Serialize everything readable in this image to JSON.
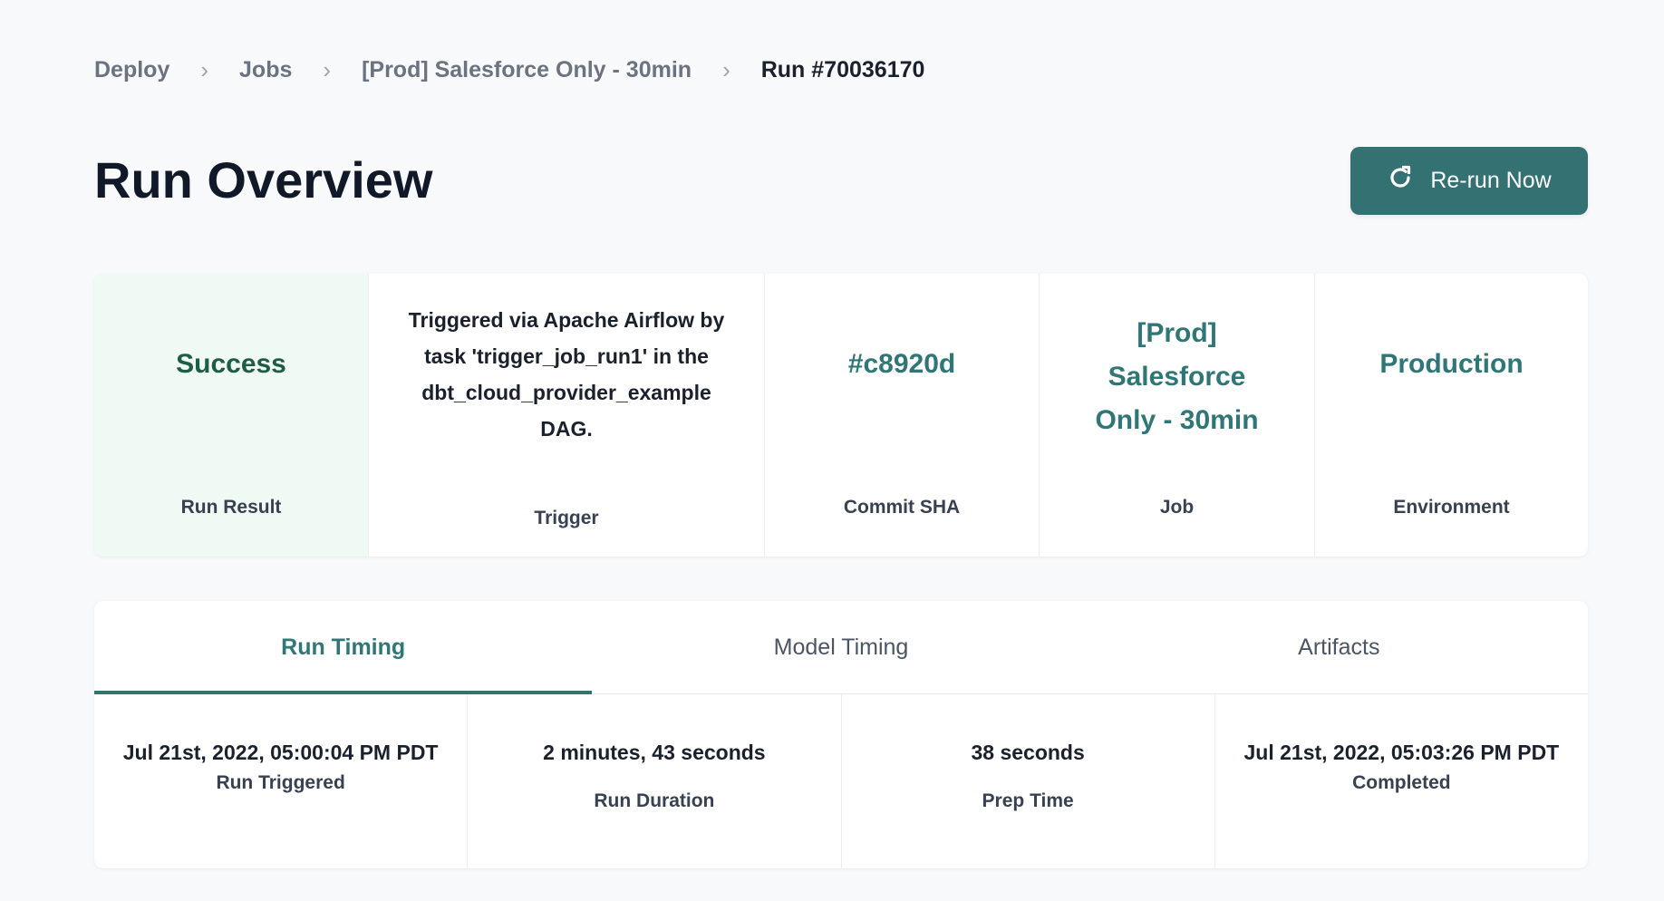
{
  "breadcrumb": {
    "items": [
      "Deploy",
      "Jobs",
      "[Prod] Salesforce Only - 30min"
    ],
    "current": "Run #70036170",
    "separator": "›"
  },
  "page_title": "Run Overview",
  "rerun_button": {
    "label": "Re-run Now",
    "icon": "refresh-icon"
  },
  "colors": {
    "accent": "#347173",
    "success_bg": "#eefaf3",
    "success_text": "#1f5c45"
  },
  "summary": [
    {
      "value": "Success",
      "label": "Run Result"
    },
    {
      "value": "Triggered via Apache Airflow by task 'trigger_job_run1' in the dbt_cloud_provider_example DAG.",
      "label": "Trigger"
    },
    {
      "value": "#c8920d",
      "label": "Commit SHA"
    },
    {
      "value": "[Prod] Salesforce Only - 30min",
      "label": "Job"
    },
    {
      "value": "Production",
      "label": "Environment"
    }
  ],
  "tabs": [
    {
      "label": "Run Timing",
      "active": true
    },
    {
      "label": "Model Timing"
    },
    {
      "label": "Artifacts"
    }
  ],
  "timing": [
    {
      "value": "Jul 21st, 2022, 05:00:04 PM PDT",
      "label": "Run Triggered"
    },
    {
      "value": "2 minutes, 43 seconds",
      "label": "Run Duration"
    },
    {
      "value": "38 seconds",
      "label": "Prep Time"
    },
    {
      "value": "Jul 21st, 2022, 05:03:26 PM PDT",
      "label": "Completed"
    }
  ]
}
